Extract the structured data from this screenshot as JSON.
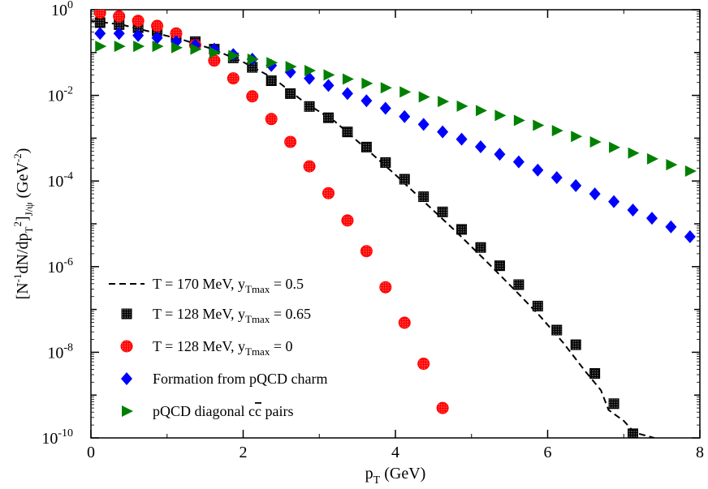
{
  "chart_data": {
    "type": "scatter",
    "title": "",
    "xlabel": {
      "main": "p",
      "sub": "T",
      "rest": " (GeV)"
    },
    "ylabel": "[N^-1 dN/dp_T^2]_J/ψ (GeV^-2)",
    "ylabel_parts": {
      "lb": "[N",
      "sup1": "-1",
      "mid": "dN/dp",
      "sub1": "T",
      "sup2": "2",
      "rb": "]",
      "sub2": "J/ψ",
      "unit": " (GeV",
      "sup3": "-2",
      "close": ")"
    },
    "x_axis": {
      "min": 0,
      "max": 8,
      "ticks": [
        0,
        2,
        4,
        6,
        8
      ],
      "tick_labels": [
        "0",
        "2",
        "4",
        "6",
        "8"
      ]
    },
    "y_axis": {
      "scale": "log",
      "min": 1e-10,
      "max": 1,
      "ticks": [
        {
          "value": 1,
          "base": "10",
          "exp": "0"
        },
        {
          "value": 0.01,
          "base": "10",
          "exp": "-2"
        },
        {
          "value": 0.0001,
          "base": "10",
          "exp": "-4"
        },
        {
          "value": 1e-06,
          "base": "10",
          "exp": "-6"
        },
        {
          "value": 1e-08,
          "base": "10",
          "exp": "-8"
        },
        {
          "value": 1e-10,
          "base": "10",
          "exp": "-10"
        }
      ]
    },
    "legend_position": "bottom-left",
    "series": [
      {
        "name": "T = 170 MeV, y_Tmax = 0.5",
        "label_parts": [
          "T = 170 MeV, y",
          "Tmax",
          " = 0.5"
        ],
        "marker": "dashed-line",
        "color": "#000000",
        "x": [
          0.0,
          0.4,
          0.8,
          1.2,
          1.6,
          2.0,
          2.4,
          2.8,
          3.2,
          3.6,
          4.0,
          4.4,
          4.8,
          5.2,
          5.6,
          5.9,
          6.2,
          6.5,
          6.7,
          6.8,
          7.0,
          7.1,
          7.2,
          7.4
        ],
        "y": [
          0.55,
          0.45,
          0.3,
          0.2,
          0.12,
          0.06,
          0.025,
          0.007,
          0.0025,
          0.0006,
          0.00014,
          3e-05,
          6.5e-06,
          1.3e-06,
          2.5e-07,
          7e-08,
          1.7e-08,
          3.5e-09,
          1.3e-09,
          4.5e-10,
          2.5e-10,
          1.6e-10,
          1.25e-10,
          1e-10
        ]
      },
      {
        "name": "T = 128 MeV, y_Tmax = 0.65",
        "label_parts": [
          "T = 128 MeV, y",
          "Tmax",
          " = 0.65"
        ],
        "marker": "square-dotted",
        "color": "#000000",
        "x": [
          0.12,
          0.37,
          0.62,
          0.87,
          1.12,
          1.37,
          1.62,
          1.87,
          2.12,
          2.37,
          2.62,
          2.87,
          3.12,
          3.37,
          3.62,
          3.87,
          4.12,
          4.37,
          4.62,
          4.87,
          5.12,
          5.37,
          5.62,
          5.87,
          6.12,
          6.37,
          6.62,
          6.87,
          7.12
        ],
        "y": [
          0.5,
          0.45,
          0.38,
          0.32,
          0.25,
          0.18,
          0.12,
          0.075,
          0.045,
          0.022,
          0.011,
          0.0055,
          0.003,
          0.0014,
          0.00062,
          0.00027,
          0.00011,
          4.3e-05,
          1.9e-05,
          7.4e-06,
          2.8e-06,
          1.05e-06,
          3.8e-07,
          1.2e-07,
          3.3e-08,
          1.5e-08,
          3.2e-09,
          6.3e-10,
          1.25e-10
        ]
      },
      {
        "name": "T = 128 MeV, y_Tmax = 0",
        "label_parts": [
          "T = 128 MeV, y",
          "Tmax",
          " = 0"
        ],
        "marker": "circle-dotted",
        "color": "#ff0000",
        "x": [
          0.12,
          0.37,
          0.62,
          0.87,
          1.12,
          1.37,
          1.62,
          1.87,
          2.12,
          2.37,
          2.62,
          2.87,
          3.12,
          3.37,
          3.62,
          3.87,
          4.12,
          4.37,
          4.62
        ],
        "y": [
          0.85,
          0.7,
          0.55,
          0.42,
          0.28,
          0.15,
          0.065,
          0.025,
          0.0095,
          0.0028,
          0.00082,
          0.00022,
          5.2e-05,
          1.2e-05,
          2.3e-06,
          3.3e-07,
          4.9e-08,
          5.4e-09,
          5e-10
        ]
      },
      {
        "name": "Formation from pQCD charm",
        "label_parts": [
          "Formation from pQCD charm",
          "",
          ""
        ],
        "marker": "diamond",
        "color": "#0000ff",
        "x": [
          0.12,
          0.37,
          0.62,
          0.87,
          1.12,
          1.37,
          1.62,
          1.87,
          2.12,
          2.37,
          2.62,
          2.87,
          3.12,
          3.37,
          3.62,
          3.87,
          4.12,
          4.37,
          4.62,
          4.87,
          5.12,
          5.37,
          5.62,
          5.87,
          6.12,
          6.37,
          6.62,
          6.87,
          7.12,
          7.37,
          7.62,
          7.87
        ],
        "y": [
          0.28,
          0.28,
          0.25,
          0.22,
          0.18,
          0.15,
          0.12,
          0.09,
          0.07,
          0.05,
          0.035,
          0.025,
          0.017,
          0.011,
          0.0075,
          0.005,
          0.0032,
          0.0021,
          0.0014,
          0.00095,
          0.00063,
          0.00042,
          0.00028,
          0.00018,
          0.00012,
          7.8e-05,
          5e-05,
          3.3e-05,
          2.1e-05,
          1.35e-05,
          8.5e-06,
          5e-06
        ]
      },
      {
        "name": "pQCD diagonal cc̄ pairs",
        "label_parts": [
          "pQCD diagonal c",
          "c",
          " pairs"
        ],
        "marker": "triangle-right",
        "color": "#008000",
        "x": [
          0.12,
          0.37,
          0.62,
          0.87,
          1.12,
          1.37,
          1.62,
          1.87,
          2.12,
          2.37,
          2.62,
          2.87,
          3.12,
          3.37,
          3.62,
          3.87,
          4.12,
          4.37,
          4.62,
          4.87,
          5.12,
          5.37,
          5.62,
          5.87,
          6.12,
          6.37,
          6.62,
          6.87,
          7.12,
          7.37,
          7.62,
          7.87
        ],
        "y": [
          0.14,
          0.14,
          0.14,
          0.14,
          0.13,
          0.12,
          0.1,
          0.085,
          0.07,
          0.058,
          0.047,
          0.038,
          0.03,
          0.024,
          0.019,
          0.015,
          0.012,
          0.0092,
          0.0072,
          0.0056,
          0.0044,
          0.0034,
          0.0026,
          0.002,
          0.0015,
          0.0011,
          0.00082,
          0.00061,
          0.00045,
          0.00033,
          0.00024,
          0.00017
        ]
      }
    ]
  }
}
